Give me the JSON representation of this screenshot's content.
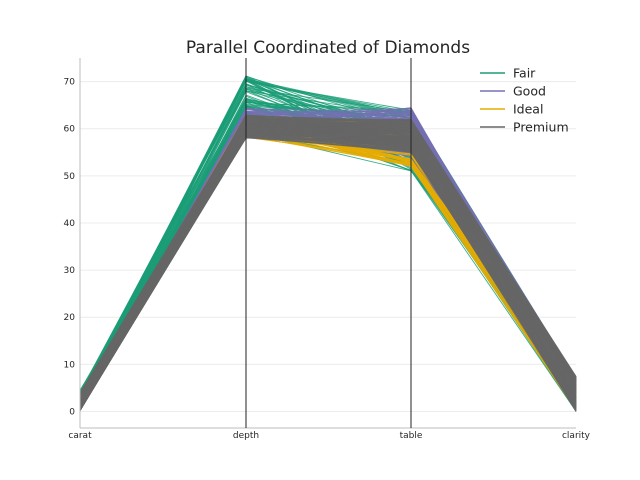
{
  "chart_data": {
    "type": "parallel_coordinates",
    "title": "Parallel Coordinated of Diamonds",
    "axes": [
      "carat",
      "depth",
      "table",
      "clarity"
    ],
    "yticks": [
      0,
      10,
      20,
      30,
      40,
      50,
      60,
      70
    ],
    "ylim": [
      -3.5,
      75
    ],
    "grid": true,
    "legend_position": "top-right",
    "series": [
      {
        "name": "Fair",
        "color": "#1b9e77",
        "ranges": {
          "carat": [
            0.2,
            4.5
          ],
          "depth": [
            58,
            71.5
          ],
          "table": [
            51,
            64
          ],
          "clarity": [
            0,
            7
          ]
        }
      },
      {
        "name": "Good",
        "color": "#7570b3",
        "ranges": {
          "carat": [
            0.2,
            3
          ],
          "depth": [
            58,
            64.5
          ],
          "table": [
            54,
            64.5
          ],
          "clarity": [
            0,
            7
          ]
        }
      },
      {
        "name": "Ideal",
        "color": "#e6ab02",
        "ranges": {
          "carat": [
            0.2,
            3.5
          ],
          "depth": [
            58,
            63
          ],
          "table": [
            52,
            62
          ],
          "clarity": [
            0,
            7
          ]
        }
      },
      {
        "name": "Premium",
        "color": "#666666",
        "ranges": {
          "carat": [
            0.2,
            4
          ],
          "depth": [
            58,
            63
          ],
          "table": [
            55,
            62
          ],
          "clarity": [
            0,
            7.5
          ]
        }
      }
    ]
  }
}
